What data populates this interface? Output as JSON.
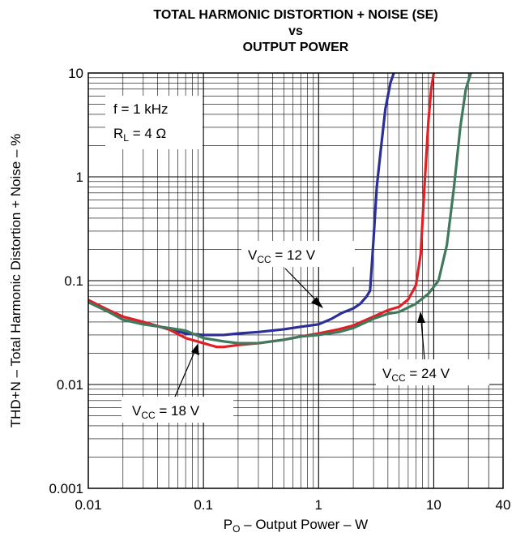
{
  "chart_data": {
    "type": "line",
    "title_lines": [
      "TOTAL HARMONIC DISTORTION + NOISE (SE)",
      "vs",
      "OUTPUT POWER"
    ],
    "xlabel": {
      "main": "P",
      "sub": "O",
      "rest": " – Output Power – W"
    },
    "ylabel": "THD+N – Total Harmonic Distortion + Noise – %",
    "x_scale": "log",
    "y_scale": "log",
    "xlim": [
      0.01,
      40
    ],
    "ylim": [
      0.001,
      10
    ],
    "x_ticks": [
      {
        "value": 0.01,
        "label": "0.01"
      },
      {
        "value": 0.1,
        "label": "0.1"
      },
      {
        "value": 1,
        "label": "1"
      },
      {
        "value": 10,
        "label": "10"
      },
      {
        "value": 40,
        "label": "40"
      }
    ],
    "y_ticks": [
      {
        "value": 0.001,
        "label": "0.001"
      },
      {
        "value": 0.01,
        "label": "0.01"
      },
      {
        "value": 0.1,
        "label": "0.1"
      },
      {
        "value": 1,
        "label": "1"
      },
      {
        "value": 10,
        "label": "10"
      }
    ],
    "grid": true,
    "conditions": {
      "line1": "f = 1 kHz",
      "line2_main": "R",
      "line2_sub": "L",
      "line2_rest": " = 4 Ω"
    },
    "series": [
      {
        "name": "V_CC = 12 V",
        "label_main": "V",
        "label_sub": "CC",
        "label_rest": " = 12 V",
        "color": "#2b2f96",
        "points": [
          [
            0.01,
            0.065
          ],
          [
            0.015,
            0.052
          ],
          [
            0.02,
            0.045
          ],
          [
            0.03,
            0.04
          ],
          [
            0.05,
            0.034
          ],
          [
            0.07,
            0.031
          ],
          [
            0.1,
            0.03
          ],
          [
            0.15,
            0.03
          ],
          [
            0.2,
            0.031
          ],
          [
            0.3,
            0.032
          ],
          [
            0.5,
            0.034
          ],
          [
            0.7,
            0.036
          ],
          [
            1,
            0.038
          ],
          [
            1.3,
            0.043
          ],
          [
            1.6,
            0.049
          ],
          [
            2,
            0.054
          ],
          [
            2.3,
            0.06
          ],
          [
            2.6,
            0.07
          ],
          [
            2.8,
            0.08
          ],
          [
            3.0,
            0.25
          ],
          [
            3.2,
            0.8
          ],
          [
            3.5,
            2.0
          ],
          [
            3.8,
            4.5
          ],
          [
            4.2,
            8.0
          ],
          [
            4.5,
            10
          ]
        ]
      },
      {
        "name": "V_CC = 18 V",
        "label_main": "V",
        "label_sub": "CC",
        "label_rest": " = 18 V",
        "color": "#e02025",
        "points": [
          [
            0.01,
            0.065
          ],
          [
            0.015,
            0.052
          ],
          [
            0.02,
            0.045
          ],
          [
            0.03,
            0.04
          ],
          [
            0.05,
            0.034
          ],
          [
            0.07,
            0.028
          ],
          [
            0.1,
            0.025
          ],
          [
            0.13,
            0.023
          ],
          [
            0.15,
            0.023
          ],
          [
            0.2,
            0.024
          ],
          [
            0.3,
            0.025
          ],
          [
            0.5,
            0.027
          ],
          [
            0.7,
            0.029
          ],
          [
            1,
            0.031
          ],
          [
            1.5,
            0.034
          ],
          [
            2,
            0.037
          ],
          [
            3,
            0.045
          ],
          [
            4,
            0.052
          ],
          [
            5,
            0.056
          ],
          [
            6,
            0.066
          ],
          [
            7,
            0.09
          ],
          [
            7.7,
            0.18
          ],
          [
            8.3,
            0.8
          ],
          [
            9.0,
            3.5
          ],
          [
            9.5,
            7.0
          ],
          [
            10,
            10
          ]
        ]
      },
      {
        "name": "V_CC = 24 V",
        "label_main": "V",
        "label_sub": "CC",
        "label_rest": " = 24 V",
        "color": "#3f7a5c",
        "points": [
          [
            0.01,
            0.062
          ],
          [
            0.015,
            0.05
          ],
          [
            0.02,
            0.042
          ],
          [
            0.03,
            0.038
          ],
          [
            0.05,
            0.035
          ],
          [
            0.07,
            0.033
          ],
          [
            0.1,
            0.028
          ],
          [
            0.15,
            0.026
          ],
          [
            0.2,
            0.025
          ],
          [
            0.3,
            0.025
          ],
          [
            0.5,
            0.027
          ],
          [
            0.7,
            0.029
          ],
          [
            1,
            0.03
          ],
          [
            1.5,
            0.032
          ],
          [
            2,
            0.035
          ],
          [
            3,
            0.043
          ],
          [
            4,
            0.048
          ],
          [
            5,
            0.05
          ],
          [
            7,
            0.06
          ],
          [
            9,
            0.075
          ],
          [
            11,
            0.1
          ],
          [
            13,
            0.22
          ],
          [
            15,
            0.8
          ],
          [
            17,
            3.0
          ],
          [
            19,
            7.0
          ],
          [
            21,
            10
          ]
        ]
      }
    ]
  }
}
